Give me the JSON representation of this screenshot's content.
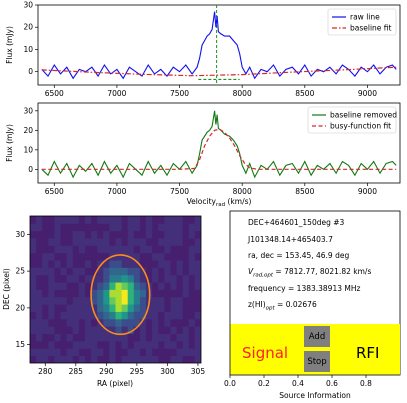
{
  "colors": {
    "raw": "#1010ee",
    "baseline": "#d62728",
    "removed": "#127812",
    "vline": "#17941b",
    "busy": "#d62728",
    "ellipse": "#ff8c1a",
    "panel_yellow": "#ffff00",
    "button_gray": "#7f7f7f",
    "signal_text": "#ff1f1f",
    "rfi_text": "#000000"
  },
  "chart_data": [
    {
      "type": "line",
      "id": "spectrum_raw",
      "ylabel": "Flux (mJy)",
      "xlim": [
        6370,
        9260
      ],
      "ylim": [
        -6,
        30
      ],
      "xticks": [
        "6500",
        "7000",
        "7500",
        "8000",
        "8500",
        "9000"
      ],
      "yticks": [
        "0",
        "10",
        "20",
        "30"
      ],
      "legend": [
        "raw line",
        "baseline fit"
      ],
      "legend_position": "top-right",
      "markers": {
        "vline_x": 7796,
        "hline_y": -3.5,
        "hline_x": [
          7650,
          7980
        ]
      },
      "series": [
        {
          "name": "raw line",
          "style": "solid",
          "color": "raw",
          "x": [
            6400,
            6450,
            6500,
            6550,
            6600,
            6650,
            6700,
            6750,
            6800,
            6850,
            6900,
            6950,
            7000,
            7050,
            7100,
            7150,
            7200,
            7250,
            7300,
            7350,
            7400,
            7450,
            7500,
            7550,
            7600,
            7640,
            7660,
            7680,
            7700,
            7720,
            7740,
            7760,
            7780,
            7790,
            7800,
            7810,
            7830,
            7860,
            7900,
            7930,
            7960,
            7980,
            8000,
            8030,
            8060,
            8100,
            8150,
            8200,
            8250,
            8300,
            8350,
            8400,
            8450,
            8500,
            8550,
            8600,
            8650,
            8700,
            8750,
            8800,
            8850,
            8900,
            8950,
            9000,
            9050,
            9100,
            9150,
            9200,
            9230
          ],
          "y": [
            1,
            -2,
            3,
            -1,
            2,
            -3,
            1,
            0,
            2,
            -2,
            3,
            -1,
            1,
            -3,
            2,
            0,
            -2,
            3,
            -1,
            1,
            -2,
            2,
            0,
            3,
            -1,
            2,
            6,
            12,
            14,
            16,
            17,
            19,
            27,
            20,
            25,
            18,
            17,
            16,
            16,
            14,
            12,
            8,
            2,
            -1,
            2,
            -3,
            1,
            0,
            3,
            -2,
            1,
            2,
            -1,
            3,
            -2,
            1,
            0,
            2,
            -1,
            3,
            1,
            -2,
            2,
            0,
            3,
            -1,
            2,
            3,
            1
          ]
        },
        {
          "name": "baseline fit",
          "style": "dashdot",
          "color": "baseline",
          "x": [
            6400,
            6800,
            7200,
            7600,
            8000,
            8400,
            8800,
            9230
          ],
          "y": [
            0.8,
            -0.3,
            -1.2,
            -1.8,
            -1.3,
            -0.2,
            0.8,
            2.0
          ]
        }
      ]
    },
    {
      "type": "line",
      "id": "spectrum_baseline_removed",
      "ylabel": "Flux (mJy)",
      "xlabel": "Velocity",
      "xlabel_sub": "rad",
      "xlabel_unit": "(km/s)",
      "xlim": [
        6370,
        9260
      ],
      "ylim": [
        -7,
        34
      ],
      "xticks": [
        "6500",
        "7000",
        "7500",
        "8000",
        "8500",
        "9000"
      ],
      "yticks": [
        "0",
        "10",
        "20",
        "30"
      ],
      "legend": [
        "baseline removed",
        "busy-function fit"
      ],
      "legend_position": "top-right",
      "series": [
        {
          "name": "baseline removed",
          "style": "solid",
          "color": "removed",
          "x": [
            6400,
            6450,
            6500,
            6550,
            6600,
            6650,
            6700,
            6750,
            6800,
            6850,
            6900,
            6950,
            7000,
            7050,
            7100,
            7150,
            7200,
            7250,
            7300,
            7350,
            7400,
            7450,
            7500,
            7550,
            7600,
            7640,
            7660,
            7680,
            7700,
            7720,
            7740,
            7760,
            7780,
            7790,
            7800,
            7810,
            7830,
            7860,
            7900,
            7930,
            7960,
            7980,
            8000,
            8030,
            8060,
            8100,
            8150,
            8200,
            8250,
            8300,
            8350,
            8400,
            8450,
            8500,
            8550,
            8600,
            8650,
            8700,
            8750,
            8800,
            8850,
            8900,
            8950,
            9000,
            9050,
            9100,
            9150,
            9200,
            9230
          ],
          "y": [
            0,
            -3,
            4,
            -2,
            3,
            -4,
            2,
            -1,
            3,
            -3,
            4,
            -2,
            2,
            -4,
            3,
            0,
            -3,
            4,
            -2,
            2,
            -3,
            3,
            0,
            4,
            -2,
            2,
            8,
            15,
            17,
            19,
            20,
            22,
            30,
            23,
            28,
            21,
            20,
            18,
            17,
            15,
            12,
            8,
            2,
            -2,
            3,
            -4,
            2,
            0,
            4,
            -3,
            2,
            3,
            -2,
            4,
            -3,
            2,
            0,
            3,
            -2,
            4,
            2,
            -3,
            3,
            0,
            4,
            -2,
            3,
            4,
            2
          ]
        },
        {
          "name": "busy-function fit",
          "style": "dashed",
          "color": "busy",
          "x": [
            6400,
            7500,
            7620,
            7660,
            7700,
            7740,
            7780,
            7820,
            7860,
            7900,
            7940,
            7980,
            8020,
            8060,
            8120,
            9230
          ],
          "y": [
            0,
            0,
            0.5,
            5,
            12,
            17,
            20,
            20.5,
            19,
            16,
            12,
            7,
            3,
            0.8,
            0,
            0
          ]
        }
      ]
    },
    {
      "type": "heatmap",
      "id": "moment_map",
      "xlabel": "RA (pixel)",
      "ylabel": "DEC (pixel)",
      "xlim": [
        277.5,
        305.5
      ],
      "ylim": [
        12.5,
        32.5
      ],
      "xticks": [
        "280",
        "285",
        "290",
        "295",
        "300",
        "305"
      ],
      "yticks": [
        "15",
        "20",
        "25",
        "30"
      ],
      "colormap": "viridis",
      "source_peak": {
        "x": 292.3,
        "y": 21.5
      },
      "ellipse": {
        "cx": 292.3,
        "cy": 21.8,
        "rx": 4.8,
        "ry": 5.4,
        "color": "ellipse"
      }
    },
    {
      "type": "table",
      "id": "source_information",
      "xlabel": "Source Information",
      "xlim": [
        0,
        1
      ],
      "xticks": [
        "0.0",
        "0.2",
        "0.4",
        "0.6",
        "0.8"
      ]
    }
  ],
  "info": {
    "name": "DEC+464601_150deg #3",
    "id": "J101348.14+465403.7",
    "radec": "ra, dec = 153.45, 46.9 deg",
    "vrad_label": "V",
    "vrad_sub": "rad,opt",
    "vrad_value": " = 7812.77, 8021.82 km/s",
    "frequency": "frequency = 1383.38913 MHz",
    "z_label": "z(HI)",
    "z_sub": "opt",
    "z_value": " = 0.02676"
  },
  "buttons": {
    "signal": "Signal",
    "rfi": "RFI",
    "add": "Add",
    "stop": "Stop"
  }
}
